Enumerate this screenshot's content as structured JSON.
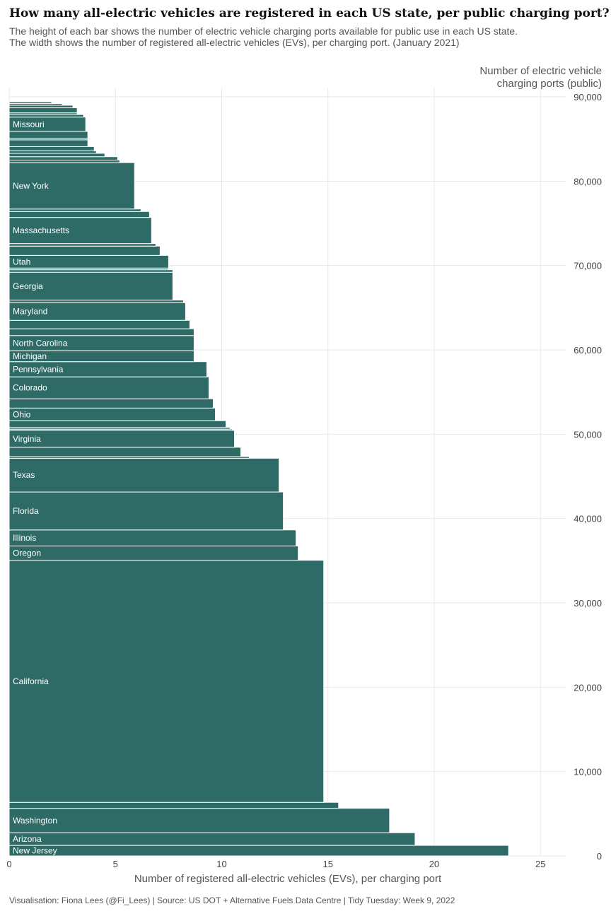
{
  "title": "How many all-electric vehicles are registered in each US state, per public charging port?",
  "subtitle": "The height of each bar shows the number of electric vehicle charging ports available for public use in each US state. The width shows the number of registered all-electric vehicles (EVs), per charging port. (January 2021)",
  "caption": "Visualisation: Fiona Lees (@Fi_Lees) | Source: US DOT + Alternative Fuels Data Centre | Tidy Tuesday: Week 9, 2022",
  "colors": {
    "bar": "#2e6b67",
    "bar_label": "#ffffff",
    "grid": "#e7e7e7"
  },
  "chart_data": {
    "type": "bar",
    "orientation": "horizontal, variable-height bars stacked cumulatively along y (mekko)",
    "xlabel": "Number of registered all-electric vehicles (EVs), per charging port",
    "ylabel": "Number of electric vehicle charging ports (public)",
    "ylabel_lines": [
      "Number of electric vehicle",
      "charging ports (public)"
    ],
    "xlim": [
      0,
      26
    ],
    "ylim": [
      0,
      90000
    ],
    "x_ticks": [
      0,
      5,
      10,
      15,
      20,
      25
    ],
    "x_tick_labels": [
      "0",
      "5",
      "10",
      "15",
      "20",
      "25"
    ],
    "y_ticks": [
      0,
      10000,
      20000,
      30000,
      40000,
      50000,
      60000,
      70000,
      80000,
      90000
    ],
    "y_tick_labels": [
      "0",
      "10,000",
      "20,000",
      "30,000",
      "40,000",
      "50,000",
      "60,000",
      "70,000",
      "80,000",
      "90,000"
    ],
    "y_axis_position": "right",
    "grid": true,
    "bars": [
      {
        "label": "New Jersey",
        "ports": 1250,
        "ev_per_port": 23.5
      },
      {
        "label": "Arizona",
        "ports": 1500,
        "ev_per_port": 19.1
      },
      {
        "label": "Washington",
        "ports": 2900,
        "ev_per_port": 17.9
      },
      {
        "label": "",
        "ports": 700,
        "ev_per_port": 15.5
      },
      {
        "label": "California",
        "ports": 28700,
        "ev_per_port": 14.8
      },
      {
        "label": "Oregon",
        "ports": 1700,
        "ev_per_port": 13.6
      },
      {
        "label": "Illinois",
        "ports": 1900,
        "ev_per_port": 13.5
      },
      {
        "label": "Florida",
        "ports": 4500,
        "ev_per_port": 12.9
      },
      {
        "label": "Texas",
        "ports": 4000,
        "ev_per_port": 12.7
      },
      {
        "label": "",
        "ports": 200,
        "ev_per_port": 11.3
      },
      {
        "label": "",
        "ports": 1100,
        "ev_per_port": 10.9
      },
      {
        "label": "Virginia",
        "ports": 2000,
        "ev_per_port": 10.6
      },
      {
        "label": "",
        "ports": 150,
        "ev_per_port": 10.5
      },
      {
        "label": "",
        "ports": 200,
        "ev_per_port": 10.4
      },
      {
        "label": "",
        "ports": 800,
        "ev_per_port": 10.2
      },
      {
        "label": "Ohio",
        "ports": 1500,
        "ev_per_port": 9.7
      },
      {
        "label": "",
        "ports": 1100,
        "ev_per_port": 9.6
      },
      {
        "label": "Colorado",
        "ports": 2600,
        "ev_per_port": 9.4
      },
      {
        "label": "Pennsylvania",
        "ports": 1800,
        "ev_per_port": 9.3
      },
      {
        "label": "Michigan",
        "ports": 1300,
        "ev_per_port": 8.7
      },
      {
        "label": "North Carolina",
        "ports": 1800,
        "ev_per_port": 8.7
      },
      {
        "label": "",
        "ports": 800,
        "ev_per_port": 8.7
      },
      {
        "label": "",
        "ports": 1000,
        "ev_per_port": 8.5
      },
      {
        "label": "Maryland",
        "ports": 2100,
        "ev_per_port": 8.3
      },
      {
        "label": "",
        "ports": 300,
        "ev_per_port": 8.2
      },
      {
        "label": "Georgia",
        "ports": 3300,
        "ev_per_port": 7.7
      },
      {
        "label": "",
        "ports": 300,
        "ev_per_port": 7.7
      },
      {
        "label": "",
        "ports": 200,
        "ev_per_port": 7.5
      },
      {
        "label": "Utah",
        "ports": 1500,
        "ev_per_port": 7.5
      },
      {
        "label": "",
        "ports": 1100,
        "ev_per_port": 7.1
      },
      {
        "label": "",
        "ports": 300,
        "ev_per_port": 6.9
      },
      {
        "label": "Massachusetts",
        "ports": 3100,
        "ev_per_port": 6.7
      },
      {
        "label": "",
        "ports": 700,
        "ev_per_port": 6.6
      },
      {
        "label": "",
        "ports": 300,
        "ev_per_port": 6.2
      },
      {
        "label": "New York",
        "ports": 5500,
        "ev_per_port": 5.9
      },
      {
        "label": "",
        "ports": 300,
        "ev_per_port": 5.2
      },
      {
        "label": "",
        "ports": 400,
        "ev_per_port": 5.1
      },
      {
        "label": "",
        "ports": 400,
        "ev_per_port": 4.5
      },
      {
        "label": "",
        "ports": 300,
        "ev_per_port": 4.1
      },
      {
        "label": "",
        "ports": 500,
        "ev_per_port": 4.0
      },
      {
        "label": "",
        "ports": 800,
        "ev_per_port": 3.7
      },
      {
        "label": "",
        "ports": 200,
        "ev_per_port": 3.7
      },
      {
        "label": "",
        "ports": 800,
        "ev_per_port": 3.7
      },
      {
        "label": "Missouri",
        "ports": 1700,
        "ev_per_port": 3.6
      },
      {
        "label": "",
        "ports": 300,
        "ev_per_port": 3.5
      },
      {
        "label": "",
        "ports": 200,
        "ev_per_port": 3.2
      },
      {
        "label": "",
        "ports": 600,
        "ev_per_port": 3.2
      },
      {
        "label": "",
        "ports": 300,
        "ev_per_port": 3.0
      },
      {
        "label": "",
        "ports": 200,
        "ev_per_port": 2.5
      },
      {
        "label": "",
        "ports": 200,
        "ev_per_port": 2.0
      }
    ]
  }
}
